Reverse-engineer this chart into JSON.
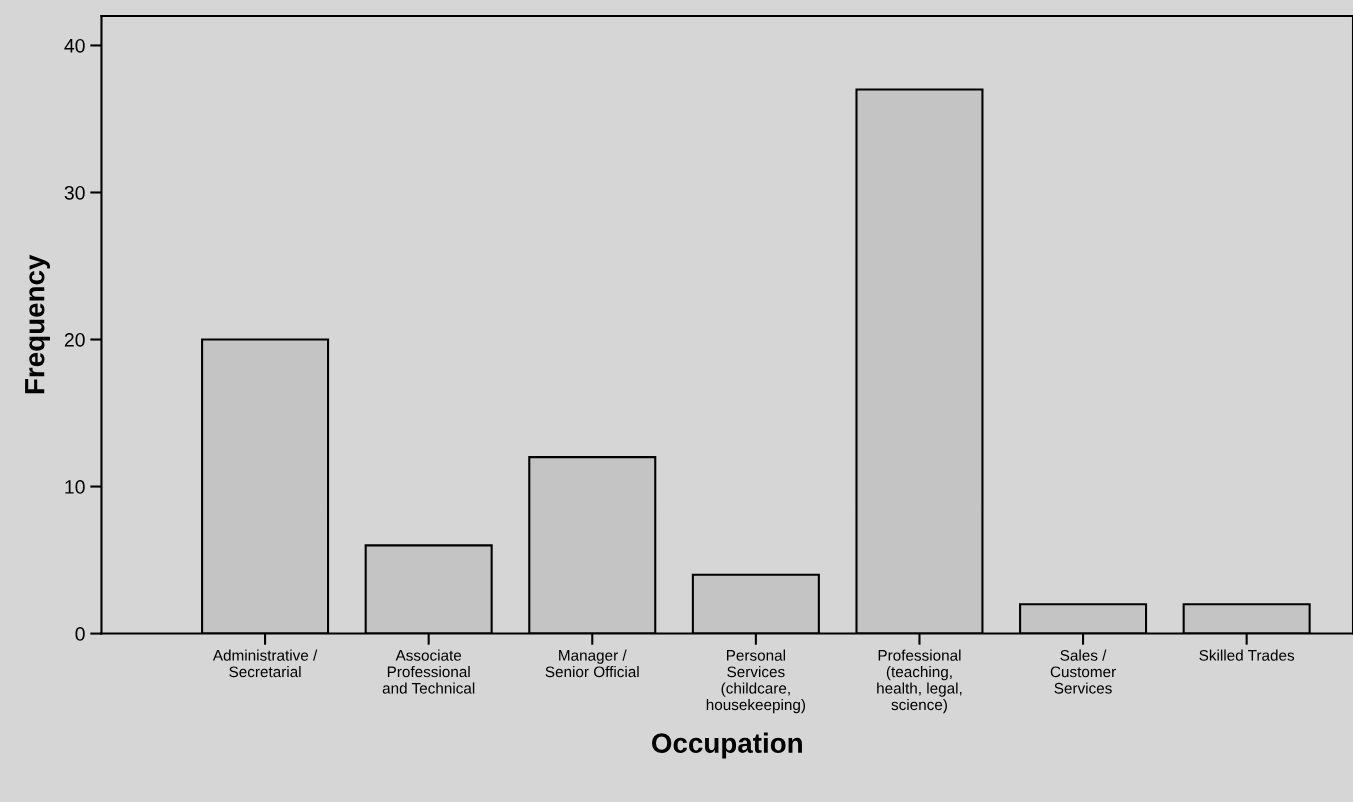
{
  "chart_data": {
    "type": "bar",
    "categories": [
      "Administrative /\nSecretarial",
      "Associate\nProfessional\nand Technical",
      "Manager /\nSenior Official",
      "Personal\nServices\n(childcare,\nhousekeeping)",
      "Professional\n(teaching,\nhealth, legal,\nscience)",
      "Sales /\nCustomer\nServices",
      "Skilled Trades"
    ],
    "values": [
      20,
      6,
      12,
      4,
      37,
      2,
      2
    ],
    "color": "#c4c4c4",
    "xlabel": "Occupation",
    "ylabel": "Frequency",
    "ylim": [
      0,
      42
    ],
    "yticks": [
      0,
      10,
      20,
      30,
      40
    ],
    "grid": false
  }
}
